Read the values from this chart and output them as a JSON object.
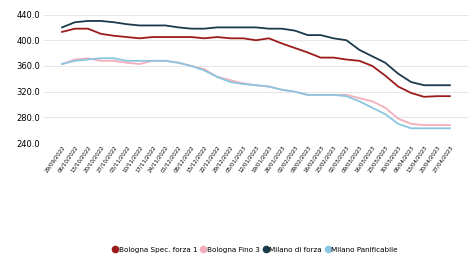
{
  "dates": [
    "29/09/2022",
    "06/10/2022",
    "13/10/2022",
    "20/10/2022",
    "27/10/2022",
    "03/11/2022",
    "10/11/2022",
    "17/11/2022",
    "24/11/2022",
    "01/12/2022",
    "08/12/2022",
    "15/12/2022",
    "22/12/2022",
    "29/12/2022",
    "05/01/2023",
    "12/01/2023",
    "19/01/2023",
    "26/01/2023",
    "02/02/2023",
    "09/02/2023",
    "16/02/2023",
    "23/02/2023",
    "02/03/2023",
    "09/03/2023",
    "16/03/2023",
    "23/03/2023",
    "30/03/2023",
    "06/04/2023",
    "13/04/2023",
    "20/04/2023",
    "27/04/2023"
  ],
  "bologna_spec": [
    413,
    418,
    418,
    410,
    407,
    405,
    403,
    405,
    405,
    405,
    405,
    403,
    405,
    403,
    403,
    400,
    403,
    395,
    388,
    381,
    373,
    373,
    370,
    368,
    360,
    345,
    328,
    318,
    312,
    313,
    313
  ],
  "bologna_fino3": [
    363,
    370,
    372,
    368,
    368,
    365,
    363,
    368,
    368,
    365,
    360,
    355,
    343,
    338,
    333,
    330,
    328,
    323,
    320,
    315,
    315,
    315,
    315,
    310,
    305,
    295,
    278,
    270,
    268,
    268,
    268
  ],
  "milano_forza": [
    420,
    428,
    430,
    430,
    428,
    425,
    423,
    423,
    423,
    420,
    418,
    418,
    420,
    420,
    420,
    420,
    418,
    418,
    415,
    408,
    408,
    403,
    400,
    385,
    375,
    365,
    348,
    335,
    330,
    330,
    330
  ],
  "milano_panificabile": [
    363,
    368,
    370,
    372,
    372,
    368,
    368,
    368,
    368,
    365,
    360,
    353,
    343,
    335,
    332,
    330,
    328,
    323,
    320,
    315,
    315,
    315,
    313,
    305,
    295,
    285,
    270,
    263,
    263,
    263,
    263
  ],
  "colors": {
    "bologna_spec": "#9B1B1B",
    "bologna_fino3": "#F4AEBB",
    "milano_forza": "#1B3A4B",
    "milano_panificabile": "#8AC6E0"
  },
  "ylim": [
    240,
    450
  ],
  "yticks": [
    240.0,
    280.0,
    320.0,
    360.0,
    400.0,
    440.0
  ],
  "legend_labels": [
    "Bologna Spec. forza 1",
    "Bologna Fino 3",
    "Milano di forza",
    "Milano Panificabile"
  ],
  "bg_color": "#ffffff",
  "grid_color": "#dddddd",
  "linewidth": 1.3
}
